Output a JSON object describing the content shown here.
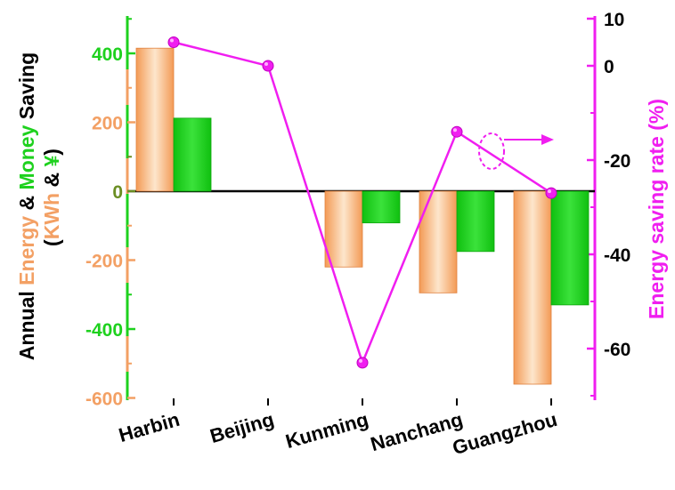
{
  "chart_data": {
    "type": "bar",
    "categories": [
      "Harbin",
      "Beijing",
      "Kunming",
      "Nanchang",
      "Guangzhou"
    ],
    "series": [
      {
        "name": "Energy",
        "axis": "left",
        "kind": "bar",
        "values": [
          415,
          null,
          -220,
          -295,
          -560
        ]
      },
      {
        "name": "Money",
        "axis": "left",
        "kind": "bar",
        "values": [
          212,
          null,
          -92,
          -175,
          -330
        ]
      },
      {
        "name": "Energy saving rate",
        "axis": "right",
        "kind": "line",
        "values": [
          5,
          0,
          -63,
          -14,
          -27
        ]
      }
    ],
    "left_axis": {
      "label_parts": [
        "Annual ",
        "Energy",
        " & ",
        "Money",
        " Saving"
      ],
      "label_line2_parts": [
        "(",
        "KWh",
        " & ",
        "¥",
        ")"
      ],
      "ylim": [
        -600,
        500
      ],
      "ticks": [
        -600,
        -400,
        -200,
        0,
        200,
        400
      ],
      "tick_labels": [
        "-600",
        "-400",
        "-200",
        "0",
        "200",
        "400"
      ]
    },
    "right_axis": {
      "label": "Energy saving rate (%)",
      "ylim": [
        -70,
        10
      ],
      "ticks": [
        -60,
        -40,
        -20,
        0,
        10
      ],
      "tick_labels": [
        "-60",
        "-40",
        "-20",
        "0",
        "10"
      ]
    },
    "colors": {
      "energy": "#f3a064",
      "money": "#1ed11e",
      "rate": "#f01ef0",
      "zero_tick": "#6b8e23",
      "axis_text": "#000000"
    },
    "grid": false,
    "annotation": "dashed ellipse with arrow pointing to right axis"
  }
}
